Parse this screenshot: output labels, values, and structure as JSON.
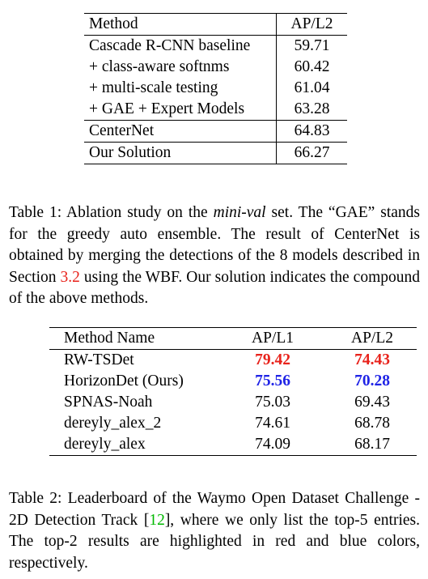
{
  "table1": {
    "header": [
      "Method",
      "AP/L2"
    ],
    "rows": [
      {
        "method": "Cascade R-CNN baseline",
        "ap": "59.71"
      },
      {
        "method": "+ class-aware softnms",
        "ap": "60.42"
      },
      {
        "method": "+ multi-scale testing",
        "ap": "61.04"
      },
      {
        "method": "+ GAE + Expert Models",
        "ap": "63.28"
      },
      {
        "method": "CenterNet",
        "ap": "64.83"
      },
      {
        "method": "Our Solution",
        "ap": "66.27"
      }
    ]
  },
  "caption1": {
    "label": "Table 1:",
    "t1": " Ablation study on the ",
    "italic": "mini-val",
    "t2": " set.  The “GAE” stands for the greedy auto ensemble. The result of CenterNet is obtained by merging the detections of the 8 models described in Section ",
    "ref": "3.2",
    "t3": " using the WBF. Our solution indicates the compound of the above methods."
  },
  "table2": {
    "header": [
      "Method Name",
      "AP/L1",
      "AP/L2"
    ],
    "rows": [
      {
        "name": "RW-TSDet",
        "l1": "79.42",
        "l2": "74.43"
      },
      {
        "name": "HorizonDet (Ours)",
        "l1": "75.56",
        "l2": "70.28"
      },
      {
        "name": "SPNAS-Noah",
        "l1": "75.03",
        "l2": "69.43"
      },
      {
        "name": "dereyly_alex_2",
        "l1": "74.61",
        "l2": "68.78"
      },
      {
        "name": "dereyly_alex",
        "l1": "74.09",
        "l2": "68.17"
      }
    ]
  },
  "caption2": {
    "label": "Table 2:",
    "t1": " Leaderboard of the Waymo Open Dataset Challenge - 2D Detection Track [",
    "ref": "12",
    "t2": "], where we only list the top-5 entries. The top-2 results are highlighted in red and blue colors, respectively."
  },
  "colors": {
    "first": "#e8221b",
    "second": "#1f23e6",
    "citation": "#00b800"
  }
}
